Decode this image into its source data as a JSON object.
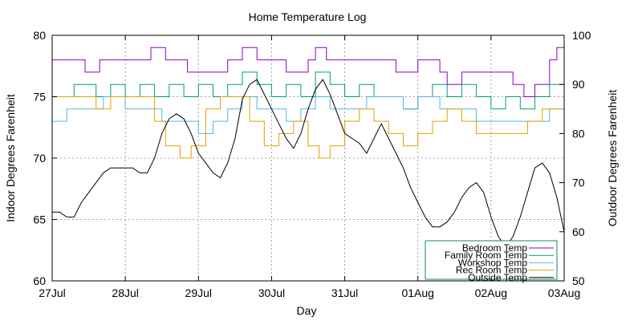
{
  "chart_data": {
    "type": "line",
    "title": "Home Temperature Log",
    "xlabel": "Day",
    "ylabel_left": "Indoor Degrees Farenheit",
    "ylabel_right": "Outdoor Degrees Farenheit",
    "x_ticks": [
      "27Jul",
      "28Jul",
      "29Jul",
      "30Jul",
      "31Jul",
      "01Aug",
      "02Aug",
      "03Aug"
    ],
    "xlim_days": [
      0,
      7
    ],
    "ylim_left": [
      60,
      80
    ],
    "ylim_right": [
      50,
      100
    ],
    "y_ticks_left": [
      60,
      65,
      70,
      75,
      80
    ],
    "y_ticks_right": [
      50,
      60,
      70,
      80,
      90,
      100
    ],
    "grid": true,
    "legend_position": "bottom-right",
    "legend_border_color": "#0b8a6e",
    "series": [
      {
        "name": "Bedroom Temp",
        "axis": "left",
        "color": "#8a00c8",
        "points": [
          [
            0,
            78
          ],
          [
            0.4,
            78
          ],
          [
            0.45,
            77
          ],
          [
            0.6,
            77
          ],
          [
            0.65,
            78
          ],
          [
            1.2,
            78
          ],
          [
            1.35,
            79
          ],
          [
            1.55,
            78
          ],
          [
            1.75,
            78
          ],
          [
            1.85,
            77
          ],
          [
            2.3,
            77
          ],
          [
            2.4,
            78
          ],
          [
            2.6,
            79
          ],
          [
            2.8,
            78
          ],
          [
            3.05,
            78
          ],
          [
            3.2,
            77
          ],
          [
            3.5,
            78
          ],
          [
            3.6,
            79
          ],
          [
            3.75,
            78
          ],
          [
            4.5,
            78
          ],
          [
            4.7,
            77
          ],
          [
            5.0,
            78
          ],
          [
            5.2,
            78
          ],
          [
            5.3,
            77
          ],
          [
            5.4,
            76
          ],
          [
            5.6,
            77
          ],
          [
            6.1,
            77
          ],
          [
            6.3,
            76
          ],
          [
            6.45,
            75
          ],
          [
            6.6,
            76
          ],
          [
            6.8,
            78
          ],
          [
            6.9,
            79
          ],
          [
            7,
            78
          ]
        ]
      },
      {
        "name": "Family Room Temp",
        "axis": "left",
        "color": "#009e73",
        "points": [
          [
            0,
            75
          ],
          [
            0.3,
            76
          ],
          [
            0.5,
            76
          ],
          [
            0.6,
            75
          ],
          [
            0.8,
            76
          ],
          [
            1.0,
            75
          ],
          [
            1.2,
            76
          ],
          [
            1.4,
            75
          ],
          [
            1.6,
            76
          ],
          [
            1.8,
            75
          ],
          [
            2.0,
            76
          ],
          [
            2.2,
            75
          ],
          [
            2.4,
            76
          ],
          [
            2.6,
            77
          ],
          [
            2.8,
            76
          ],
          [
            3.0,
            75
          ],
          [
            3.2,
            76
          ],
          [
            3.4,
            75
          ],
          [
            3.6,
            77
          ],
          [
            3.8,
            76
          ],
          [
            4.0,
            75
          ],
          [
            4.2,
            76
          ],
          [
            4.4,
            75
          ],
          [
            4.6,
            75
          ],
          [
            4.8,
            74
          ],
          [
            5.0,
            75
          ],
          [
            5.2,
            76
          ],
          [
            5.4,
            75
          ],
          [
            5.6,
            76
          ],
          [
            5.8,
            75
          ],
          [
            6.0,
            74
          ],
          [
            6.2,
            75
          ],
          [
            6.4,
            74
          ],
          [
            6.6,
            75
          ],
          [
            6.8,
            76
          ],
          [
            7,
            75
          ]
        ]
      },
      {
        "name": "Workshop Temp",
        "axis": "left",
        "color": "#56b4e9",
        "points": [
          [
            0,
            73
          ],
          [
            0.2,
            74
          ],
          [
            0.5,
            74
          ],
          [
            0.7,
            75
          ],
          [
            1.0,
            74
          ],
          [
            1.3,
            74
          ],
          [
            1.5,
            73
          ],
          [
            1.8,
            73
          ],
          [
            2.0,
            72
          ],
          [
            2.2,
            73
          ],
          [
            2.4,
            74
          ],
          [
            2.6,
            75
          ],
          [
            2.8,
            74
          ],
          [
            3.0,
            74
          ],
          [
            3.2,
            73
          ],
          [
            3.4,
            74
          ],
          [
            3.6,
            75
          ],
          [
            3.8,
            74
          ],
          [
            4.0,
            74
          ],
          [
            4.3,
            75
          ],
          [
            4.6,
            75
          ],
          [
            4.8,
            74
          ],
          [
            5.0,
            75
          ],
          [
            5.3,
            74
          ],
          [
            5.6,
            74
          ],
          [
            5.8,
            73
          ],
          [
            6.0,
            73
          ],
          [
            6.3,
            73
          ],
          [
            6.6,
            73
          ],
          [
            6.8,
            74
          ],
          [
            7,
            73
          ]
        ]
      },
      {
        "name": "Rec Room Temp",
        "axis": "left",
        "color": "#e69f00",
        "points": [
          [
            0,
            75
          ],
          [
            0.4,
            75
          ],
          [
            0.6,
            74
          ],
          [
            0.8,
            75
          ],
          [
            1.0,
            75
          ],
          [
            1.2,
            75
          ],
          [
            1.4,
            73
          ],
          [
            1.55,
            71
          ],
          [
            1.75,
            70
          ],
          [
            1.9,
            71
          ],
          [
            2.1,
            74
          ],
          [
            2.3,
            75
          ],
          [
            2.5,
            75
          ],
          [
            2.7,
            73
          ],
          [
            2.9,
            71
          ],
          [
            3.1,
            72
          ],
          [
            3.3,
            73
          ],
          [
            3.5,
            71
          ],
          [
            3.65,
            70
          ],
          [
            3.8,
            71
          ],
          [
            4.0,
            73
          ],
          [
            4.2,
            74
          ],
          [
            4.4,
            73
          ],
          [
            4.6,
            72
          ],
          [
            4.8,
            71
          ],
          [
            5.0,
            72
          ],
          [
            5.2,
            73
          ],
          [
            5.4,
            74
          ],
          [
            5.6,
            73
          ],
          [
            5.8,
            72
          ],
          [
            6.0,
            72
          ],
          [
            6.3,
            72
          ],
          [
            6.5,
            73
          ],
          [
            6.7,
            74
          ],
          [
            6.85,
            74
          ],
          [
            7,
            73
          ]
        ]
      },
      {
        "name": "Outside Temp",
        "axis": "right",
        "color": "#000000",
        "points": [
          [
            0,
            64
          ],
          [
            0.1,
            64
          ],
          [
            0.2,
            63
          ],
          [
            0.3,
            63
          ],
          [
            0.4,
            66
          ],
          [
            0.5,
            68
          ],
          [
            0.6,
            70
          ],
          [
            0.7,
            72
          ],
          [
            0.8,
            73
          ],
          [
            0.9,
            73
          ],
          [
            1.0,
            73
          ],
          [
            1.1,
            73
          ],
          [
            1.2,
            72
          ],
          [
            1.3,
            72
          ],
          [
            1.4,
            75
          ],
          [
            1.5,
            80
          ],
          [
            1.6,
            83
          ],
          [
            1.7,
            84
          ],
          [
            1.8,
            83
          ],
          [
            1.9,
            80
          ],
          [
            2.0,
            76
          ],
          [
            2.1,
            74
          ],
          [
            2.2,
            72
          ],
          [
            2.3,
            71
          ],
          [
            2.4,
            74
          ],
          [
            2.5,
            79
          ],
          [
            2.6,
            87
          ],
          [
            2.7,
            90
          ],
          [
            2.8,
            91
          ],
          [
            2.9,
            88
          ],
          [
            3.0,
            85
          ],
          [
            3.1,
            82
          ],
          [
            3.2,
            79
          ],
          [
            3.3,
            77
          ],
          [
            3.4,
            80
          ],
          [
            3.5,
            85
          ],
          [
            3.6,
            89
          ],
          [
            3.7,
            91
          ],
          [
            3.8,
            88
          ],
          [
            3.9,
            84
          ],
          [
            4.0,
            80
          ],
          [
            4.1,
            79
          ],
          [
            4.2,
            78
          ],
          [
            4.3,
            76
          ],
          [
            4.4,
            79
          ],
          [
            4.5,
            82
          ],
          [
            4.6,
            79
          ],
          [
            4.7,
            76
          ],
          [
            4.8,
            73
          ],
          [
            4.9,
            69
          ],
          [
            5.0,
            66
          ],
          [
            5.1,
            63
          ],
          [
            5.2,
            61
          ],
          [
            5.3,
            61
          ],
          [
            5.4,
            62
          ],
          [
            5.5,
            64
          ],
          [
            5.6,
            67
          ],
          [
            5.7,
            69
          ],
          [
            5.8,
            70
          ],
          [
            5.9,
            68
          ],
          [
            6.0,
            63
          ],
          [
            6.1,
            59
          ],
          [
            6.2,
            57
          ],
          [
            6.3,
            59
          ],
          [
            6.4,
            63
          ],
          [
            6.5,
            68
          ],
          [
            6.6,
            73
          ],
          [
            6.7,
            74
          ],
          [
            6.8,
            72
          ],
          [
            6.9,
            67
          ],
          [
            7.0,
            60
          ]
        ]
      }
    ]
  }
}
